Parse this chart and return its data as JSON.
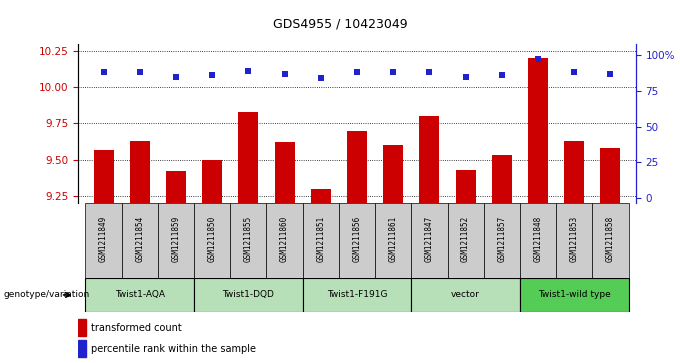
{
  "title": "GDS4955 / 10423049",
  "samples": [
    "GSM1211849",
    "GSM1211854",
    "GSM1211859",
    "GSM1211850",
    "GSM1211855",
    "GSM1211860",
    "GSM1211851",
    "GSM1211856",
    "GSM1211861",
    "GSM1211847",
    "GSM1211852",
    "GSM1211857",
    "GSM1211848",
    "GSM1211853",
    "GSM1211858"
  ],
  "bar_values": [
    9.57,
    9.63,
    9.42,
    9.5,
    9.83,
    9.62,
    9.3,
    9.7,
    9.6,
    9.8,
    9.43,
    9.53,
    10.2,
    9.63,
    9.58
  ],
  "dot_values": [
    88,
    88,
    85,
    86,
    89,
    87,
    84,
    88,
    88,
    88,
    85,
    86,
    97,
    88,
    87
  ],
  "groups": [
    {
      "label": "Twist1-AQA",
      "start": 0,
      "end": 2,
      "color": "#b8e0b8"
    },
    {
      "label": "Twist1-DQD",
      "start": 3,
      "end": 5,
      "color": "#b8e0b8"
    },
    {
      "label": "Twist1-F191G",
      "start": 6,
      "end": 8,
      "color": "#b8e0b8"
    },
    {
      "label": "vector",
      "start": 9,
      "end": 11,
      "color": "#b8e0b8"
    },
    {
      "label": "Twist1-wild type",
      "start": 12,
      "end": 14,
      "color": "#55cc55"
    }
  ],
  "ylim_left": [
    9.2,
    10.3
  ],
  "yticks_left": [
    9.25,
    9.5,
    9.75,
    10.0,
    10.25
  ],
  "ylim_right": [
    -3.5,
    108
  ],
  "yticks_right": [
    0,
    25,
    50,
    75,
    100
  ],
  "bar_color": "#cc0000",
  "dot_color": "#2222cc",
  "bar_width": 0.55,
  "sample_box_color": "#cccccc",
  "legend_items": [
    {
      "label": "transformed count",
      "color": "#cc0000"
    },
    {
      "label": "percentile rank within the sample",
      "color": "#2222cc"
    }
  ],
  "genotype_label": "genotype/variation"
}
